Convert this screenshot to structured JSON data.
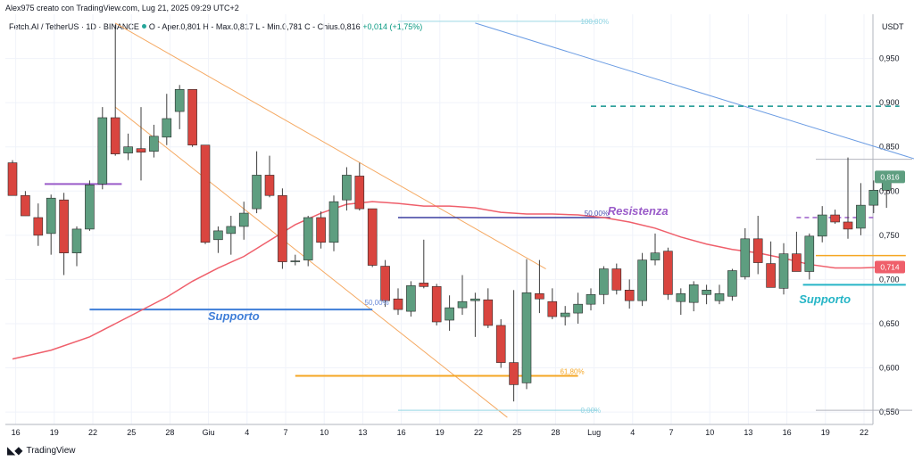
{
  "header": {
    "text": "Alex975 creato con TradingView.com, Lug 21, 2025 09:29 UTC+2"
  },
  "symbol": {
    "name": "Fetch.AI / TetherUS · 1D · BINANCE",
    "ohlc": "O - Aper.0,801  H - Max.0,817  L - Min.0,781  C - Chius.0,816",
    "change": "+0,014 (+1,75%)"
  },
  "footer": {
    "brand": "TradingView"
  },
  "colors": {
    "up": "#5e9e80",
    "down": "#d9453f",
    "ma": "#ef5f6b",
    "support": "#3f7ed8",
    "resistance": "#9a5cc9",
    "cyan": "#26b5c6"
  },
  "annotations": {
    "supporto_left": "Supporto",
    "supporto_right": "Supporto",
    "resistenza": "Resistenza"
  },
  "chart_data": {
    "type": "candlestick",
    "currency": "USDT",
    "y_ticks": [
      "0,550",
      "0,600",
      "0,650",
      "0,700",
      "0,750",
      "0,800",
      "0,850",
      "0,900",
      "0,950"
    ],
    "ylim": [
      0.536,
      1.0
    ],
    "x_ticks": [
      "16",
      "19",
      "22",
      "25",
      "28",
      "Giu",
      "4",
      "7",
      "10",
      "13",
      "16",
      "19",
      "22",
      "25",
      "28",
      "Lug",
      "4",
      "7",
      "10",
      "13",
      "16",
      "19",
      "22"
    ],
    "last_price_tag": "0,816",
    "ma_price_tag": "0,714",
    "candles": [
      {
        "o": 0.832,
        "h": 0.835,
        "l": 0.795,
        "c": 0.795
      },
      {
        "o": 0.795,
        "h": 0.8,
        "l": 0.772,
        "c": 0.772
      },
      {
        "o": 0.77,
        "h": 0.786,
        "l": 0.738,
        "c": 0.75
      },
      {
        "o": 0.752,
        "h": 0.796,
        "l": 0.728,
        "c": 0.792
      },
      {
        "o": 0.79,
        "h": 0.798,
        "l": 0.705,
        "c": 0.73
      },
      {
        "o": 0.73,
        "h": 0.76,
        "l": 0.715,
        "c": 0.757
      },
      {
        "o": 0.757,
        "h": 0.812,
        "l": 0.755,
        "c": 0.807
      },
      {
        "o": 0.808,
        "h": 0.895,
        "l": 0.802,
        "c": 0.883
      },
      {
        "o": 0.883,
        "h": 0.988,
        "l": 0.84,
        "c": 0.842
      },
      {
        "o": 0.843,
        "h": 0.865,
        "l": 0.835,
        "c": 0.85
      },
      {
        "o": 0.848,
        "h": 0.895,
        "l": 0.812,
        "c": 0.844
      },
      {
        "o": 0.845,
        "h": 0.875,
        "l": 0.838,
        "c": 0.862
      },
      {
        "o": 0.861,
        "h": 0.91,
        "l": 0.852,
        "c": 0.882
      },
      {
        "o": 0.89,
        "h": 0.92,
        "l": 0.87,
        "c": 0.915
      },
      {
        "o": 0.915,
        "h": 0.915,
        "l": 0.85,
        "c": 0.852
      },
      {
        "o": 0.852,
        "h": 0.852,
        "l": 0.74,
        "c": 0.742
      },
      {
        "o": 0.745,
        "h": 0.76,
        "l": 0.73,
        "c": 0.755
      },
      {
        "o": 0.752,
        "h": 0.772,
        "l": 0.728,
        "c": 0.76
      },
      {
        "o": 0.76,
        "h": 0.788,
        "l": 0.745,
        "c": 0.775
      },
      {
        "o": 0.78,
        "h": 0.845,
        "l": 0.775,
        "c": 0.818
      },
      {
        "o": 0.818,
        "h": 0.84,
        "l": 0.793,
        "c": 0.795
      },
      {
        "o": 0.795,
        "h": 0.803,
        "l": 0.712,
        "c": 0.72
      },
      {
        "o": 0.72,
        "h": 0.728,
        "l": 0.716,
        "c": 0.721
      },
      {
        "o": 0.722,
        "h": 0.772,
        "l": 0.715,
        "c": 0.77
      },
      {
        "o": 0.77,
        "h": 0.777,
        "l": 0.735,
        "c": 0.742
      },
      {
        "o": 0.742,
        "h": 0.795,
        "l": 0.732,
        "c": 0.788
      },
      {
        "o": 0.79,
        "h": 0.827,
        "l": 0.778,
        "c": 0.818
      },
      {
        "o": 0.817,
        "h": 0.832,
        "l": 0.778,
        "c": 0.78
      },
      {
        "o": 0.78,
        "h": 0.78,
        "l": 0.714,
        "c": 0.716
      },
      {
        "o": 0.715,
        "h": 0.722,
        "l": 0.669,
        "c": 0.676
      },
      {
        "o": 0.678,
        "h": 0.69,
        "l": 0.66,
        "c": 0.666
      },
      {
        "o": 0.664,
        "h": 0.698,
        "l": 0.658,
        "c": 0.693
      },
      {
        "o": 0.696,
        "h": 0.745,
        "l": 0.69,
        "c": 0.692
      },
      {
        "o": 0.692,
        "h": 0.695,
        "l": 0.648,
        "c": 0.652
      },
      {
        "o": 0.654,
        "h": 0.682,
        "l": 0.642,
        "c": 0.668
      },
      {
        "o": 0.668,
        "h": 0.705,
        "l": 0.66,
        "c": 0.675
      },
      {
        "o": 0.676,
        "h": 0.685,
        "l": 0.635,
        "c": 0.678
      },
      {
        "o": 0.677,
        "h": 0.69,
        "l": 0.645,
        "c": 0.648
      },
      {
        "o": 0.648,
        "h": 0.655,
        "l": 0.6,
        "c": 0.606
      },
      {
        "o": 0.606,
        "h": 0.688,
        "l": 0.562,
        "c": 0.581
      },
      {
        "o": 0.583,
        "h": 0.723,
        "l": 0.576,
        "c": 0.685
      },
      {
        "o": 0.684,
        "h": 0.722,
        "l": 0.662,
        "c": 0.678
      },
      {
        "o": 0.675,
        "h": 0.69,
        "l": 0.655,
        "c": 0.658
      },
      {
        "o": 0.658,
        "h": 0.67,
        "l": 0.648,
        "c": 0.662
      },
      {
        "o": 0.662,
        "h": 0.685,
        "l": 0.65,
        "c": 0.672
      },
      {
        "o": 0.672,
        "h": 0.69,
        "l": 0.665,
        "c": 0.683
      },
      {
        "o": 0.683,
        "h": 0.715,
        "l": 0.672,
        "c": 0.712
      },
      {
        "o": 0.712,
        "h": 0.718,
        "l": 0.683,
        "c": 0.688
      },
      {
        "o": 0.688,
        "h": 0.7,
        "l": 0.667,
        "c": 0.676
      },
      {
        "o": 0.676,
        "h": 0.73,
        "l": 0.67,
        "c": 0.722
      },
      {
        "o": 0.722,
        "h": 0.752,
        "l": 0.716,
        "c": 0.73
      },
      {
        "o": 0.732,
        "h": 0.736,
        "l": 0.677,
        "c": 0.683
      },
      {
        "o": 0.675,
        "h": 0.69,
        "l": 0.66,
        "c": 0.684
      },
      {
        "o": 0.674,
        "h": 0.698,
        "l": 0.664,
        "c": 0.694
      },
      {
        "o": 0.683,
        "h": 0.694,
        "l": 0.672,
        "c": 0.688
      },
      {
        "o": 0.676,
        "h": 0.694,
        "l": 0.672,
        "c": 0.684
      },
      {
        "o": 0.681,
        "h": 0.712,
        "l": 0.676,
        "c": 0.71
      },
      {
        "o": 0.703,
        "h": 0.758,
        "l": 0.7,
        "c": 0.746
      },
      {
        "o": 0.746,
        "h": 0.772,
        "l": 0.706,
        "c": 0.719
      },
      {
        "o": 0.718,
        "h": 0.743,
        "l": 0.692,
        "c": 0.691
      },
      {
        "o": 0.69,
        "h": 0.741,
        "l": 0.683,
        "c": 0.729
      },
      {
        "o": 0.729,
        "h": 0.754,
        "l": 0.71,
        "c": 0.709
      },
      {
        "o": 0.709,
        "h": 0.752,
        "l": 0.7,
        "c": 0.749
      },
      {
        "o": 0.749,
        "h": 0.783,
        "l": 0.742,
        "c": 0.773
      },
      {
        "o": 0.773,
        "h": 0.779,
        "l": 0.763,
        "c": 0.765
      },
      {
        "o": 0.765,
        "h": 0.838,
        "l": 0.746,
        "c": 0.757
      },
      {
        "o": 0.758,
        "h": 0.809,
        "l": 0.75,
        "c": 0.784
      },
      {
        "o": 0.784,
        "h": 0.812,
        "l": 0.775,
        "c": 0.801
      },
      {
        "o": 0.801,
        "h": 0.817,
        "l": 0.781,
        "c": 0.816
      }
    ],
    "ma": [
      [
        0,
        0.61
      ],
      [
        3,
        0.62
      ],
      [
        6,
        0.635
      ],
      [
        8,
        0.65
      ],
      [
        10,
        0.665
      ],
      [
        12,
        0.68
      ],
      [
        14,
        0.698
      ],
      [
        16,
        0.713
      ],
      [
        18,
        0.726
      ],
      [
        20,
        0.744
      ],
      [
        22,
        0.762
      ],
      [
        24,
        0.775
      ],
      [
        26,
        0.785
      ],
      [
        28,
        0.788
      ],
      [
        30,
        0.786
      ],
      [
        32,
        0.783
      ],
      [
        34,
        0.783
      ],
      [
        36,
        0.781
      ],
      [
        38,
        0.776
      ],
      [
        40,
        0.774
      ],
      [
        42,
        0.774
      ],
      [
        44,
        0.773
      ],
      [
        46,
        0.77
      ],
      [
        48,
        0.765
      ],
      [
        50,
        0.758
      ],
      [
        52,
        0.748
      ],
      [
        54,
        0.74
      ],
      [
        56,
        0.734
      ],
      [
        58,
        0.73
      ],
      [
        60,
        0.724
      ],
      [
        62,
        0.717
      ],
      [
        64,
        0.713
      ],
      [
        66,
        0.713
      ],
      [
        68,
        0.714
      ]
    ],
    "drawings": {
      "channel_upper": [
        [
          8,
          0.99
        ],
        [
          41.5,
          0.712
        ]
      ],
      "channel_lower": [
        [
          8,
          0.895
        ],
        [
          38.5,
          0.544
        ]
      ],
      "blue_trend": [
        [
          36,
          0.99
        ],
        [
          70.5,
          0.835
        ]
      ],
      "support_blue": {
        "x": [
          6,
          28
        ],
        "y": 0.666
      },
      "resistance_line": {
        "x": [
          30,
          46.5
        ],
        "y": 0.77
      },
      "purple_short": {
        "x": [
          2.5,
          8.5
        ],
        "y": 0.808
      },
      "purple_dashed": {
        "x": [
          61,
          67
        ],
        "y": 0.77
      },
      "teal_dashed": {
        "x": [
          45,
          69
        ],
        "y": 0.896
      },
      "orange_short": {
        "x": [
          62.5,
          69.5
        ],
        "y": 0.727
      },
      "cyan_short": {
        "x": [
          61.5,
          69.5
        ],
        "y": 0.694
      },
      "fib_100": {
        "x": [
          30,
          45.5
        ],
        "y": 0.992,
        "label": "100,00%"
      },
      "fib_61": {
        "x": [
          22,
          44
        ],
        "y": 0.591,
        "label": "61,80%"
      },
      "fib_0": {
        "x": [
          30,
          45.5
        ],
        "y": 0.552,
        "label": "0,00%"
      },
      "fib_50_label": "50,00%",
      "fib_50_support_label": "50,00%",
      "grey_top": {
        "x": [
          62.5,
          70
        ],
        "y": 0.836
      },
      "grey_bottom": {
        "x": [
          62.5,
          70
        ],
        "y": 0.552
      }
    }
  }
}
